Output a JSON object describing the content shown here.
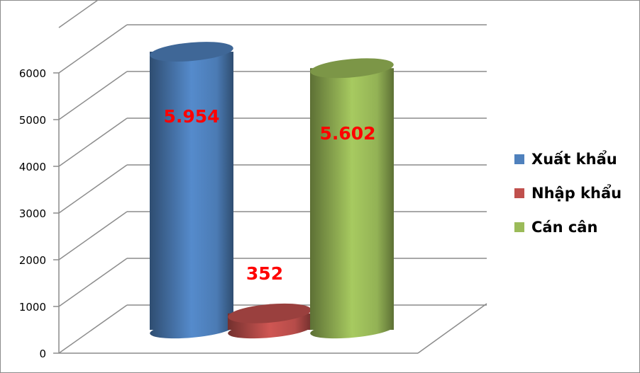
{
  "chart_data": {
    "type": "bar",
    "style": "3d-cylinder",
    "categories": [
      "Xuất khẩu",
      "Nhập khẩu",
      "Cán cân"
    ],
    "values": [
      5954,
      352,
      5602
    ],
    "data_labels": [
      "5.954",
      "352",
      "5.602"
    ],
    "colors": [
      "#4f81bd",
      "#c0504d",
      "#9bbb59"
    ],
    "data_label_color": "#ff0000",
    "ylim": [
      0,
      6000
    ],
    "yticks": [
      "0",
      "1000",
      "2000",
      "3000",
      "4000",
      "5000",
      "6000"
    ],
    "grid": true,
    "legend": {
      "position": "right",
      "entries": [
        "Xuất khẩu",
        "Nhập khẩu",
        "Cán cân"
      ]
    }
  }
}
